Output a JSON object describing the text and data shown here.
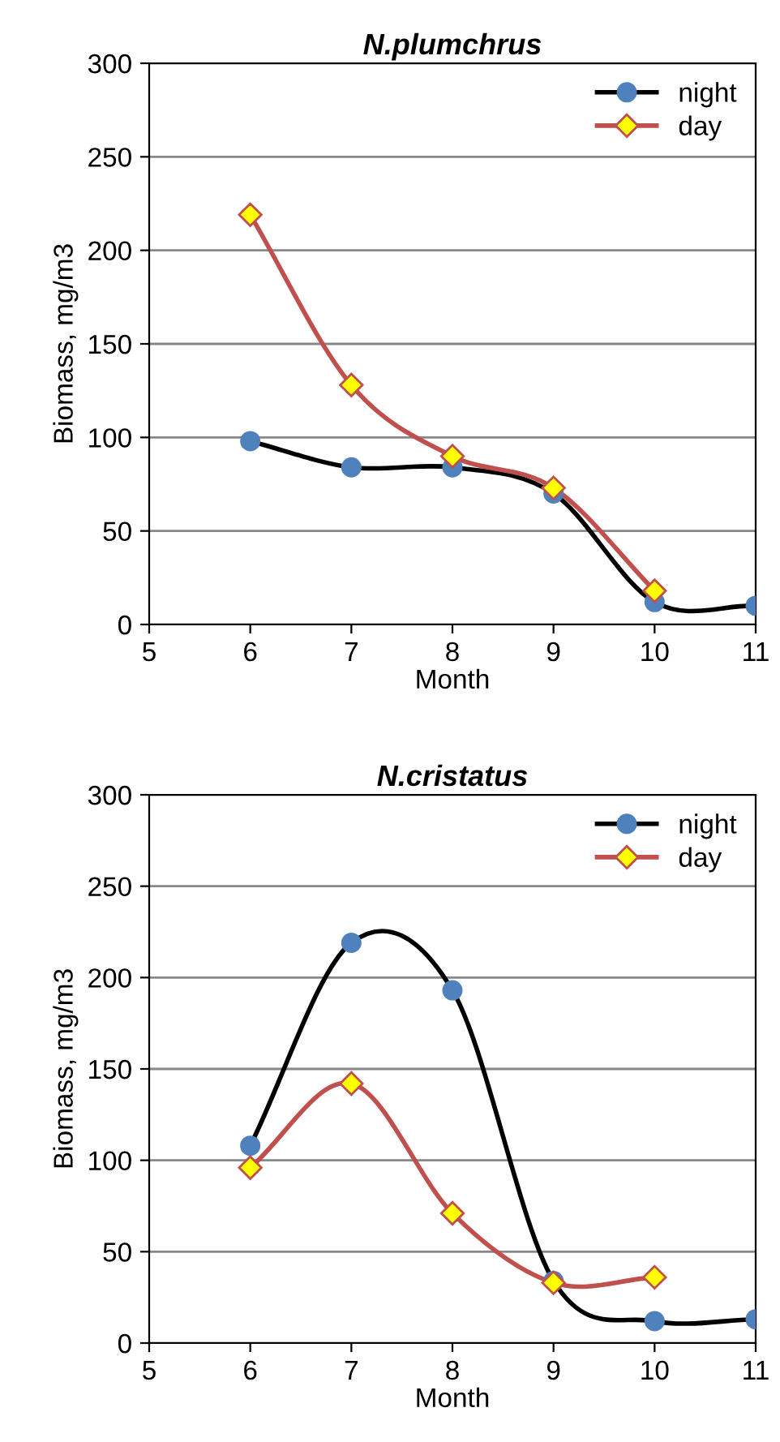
{
  "chart_data": [
    {
      "type": "line",
      "title": "N.plumchrus",
      "xlabel": "Month",
      "ylabel": "Biomass, mg/m3",
      "x": [
        6,
        7,
        8,
        9,
        10,
        11
      ],
      "xlim": [
        5,
        11
      ],
      "xticks": [
        5,
        6,
        7,
        8,
        9,
        10,
        11
      ],
      "ylim": [
        0,
        300
      ],
      "yticks": [
        0,
        50,
        100,
        150,
        200,
        250,
        300
      ],
      "grid": "y",
      "legend": "top right",
      "series": [
        {
          "name": "night",
          "color": "#000000",
          "marker": "circle",
          "colors": [
            "#4f81bd",
            "#4f81bd",
            "#4f81bd",
            "#4f81bd",
            "#4f81bd",
            "#4f81bd"
          ],
          "values": [
            98,
            84,
            84,
            70,
            12,
            10
          ]
        },
        {
          "name": "day",
          "color": "#c0504d",
          "marker": "diamond",
          "colors": [
            "#ffff00",
            "#ffff00",
            "#ffff00",
            "#ffff00",
            "#ffff00"
          ],
          "x": [
            6,
            7,
            8,
            9,
            10
          ],
          "values": [
            219,
            128,
            90,
            73,
            18
          ]
        }
      ]
    },
    {
      "type": "line",
      "title": "N.cristatus",
      "xlabel": "Month",
      "ylabel": "Biomass, mg/m3",
      "x": [
        6,
        7,
        8,
        9,
        10,
        11
      ],
      "xlim": [
        5,
        11
      ],
      "xticks": [
        5,
        6,
        7,
        8,
        9,
        10,
        11
      ],
      "ylim": [
        0,
        300
      ],
      "yticks": [
        0,
        50,
        100,
        150,
        200,
        250,
        300
      ],
      "grid": "y",
      "legend": "top right",
      "series": [
        {
          "name": "night",
          "color": "#000000",
          "marker": "circle",
          "colors": [
            "#4f81bd",
            "#4f81bd",
            "#4f81bd",
            "#4f81bd",
            "#4f81bd",
            "#4f81bd"
          ],
          "values": [
            108,
            219,
            193,
            34,
            12,
            13
          ]
        },
        {
          "name": "day",
          "color": "#c0504d",
          "marker": "diamond",
          "colors": [
            "#ffff00",
            "#ffff00",
            "#ffff00",
            "#ffff00",
            "#ffff00"
          ],
          "x": [
            6,
            7,
            8,
            9,
            10
          ],
          "values": [
            96,
            142,
            71,
            33,
            36
          ]
        }
      ]
    }
  ]
}
